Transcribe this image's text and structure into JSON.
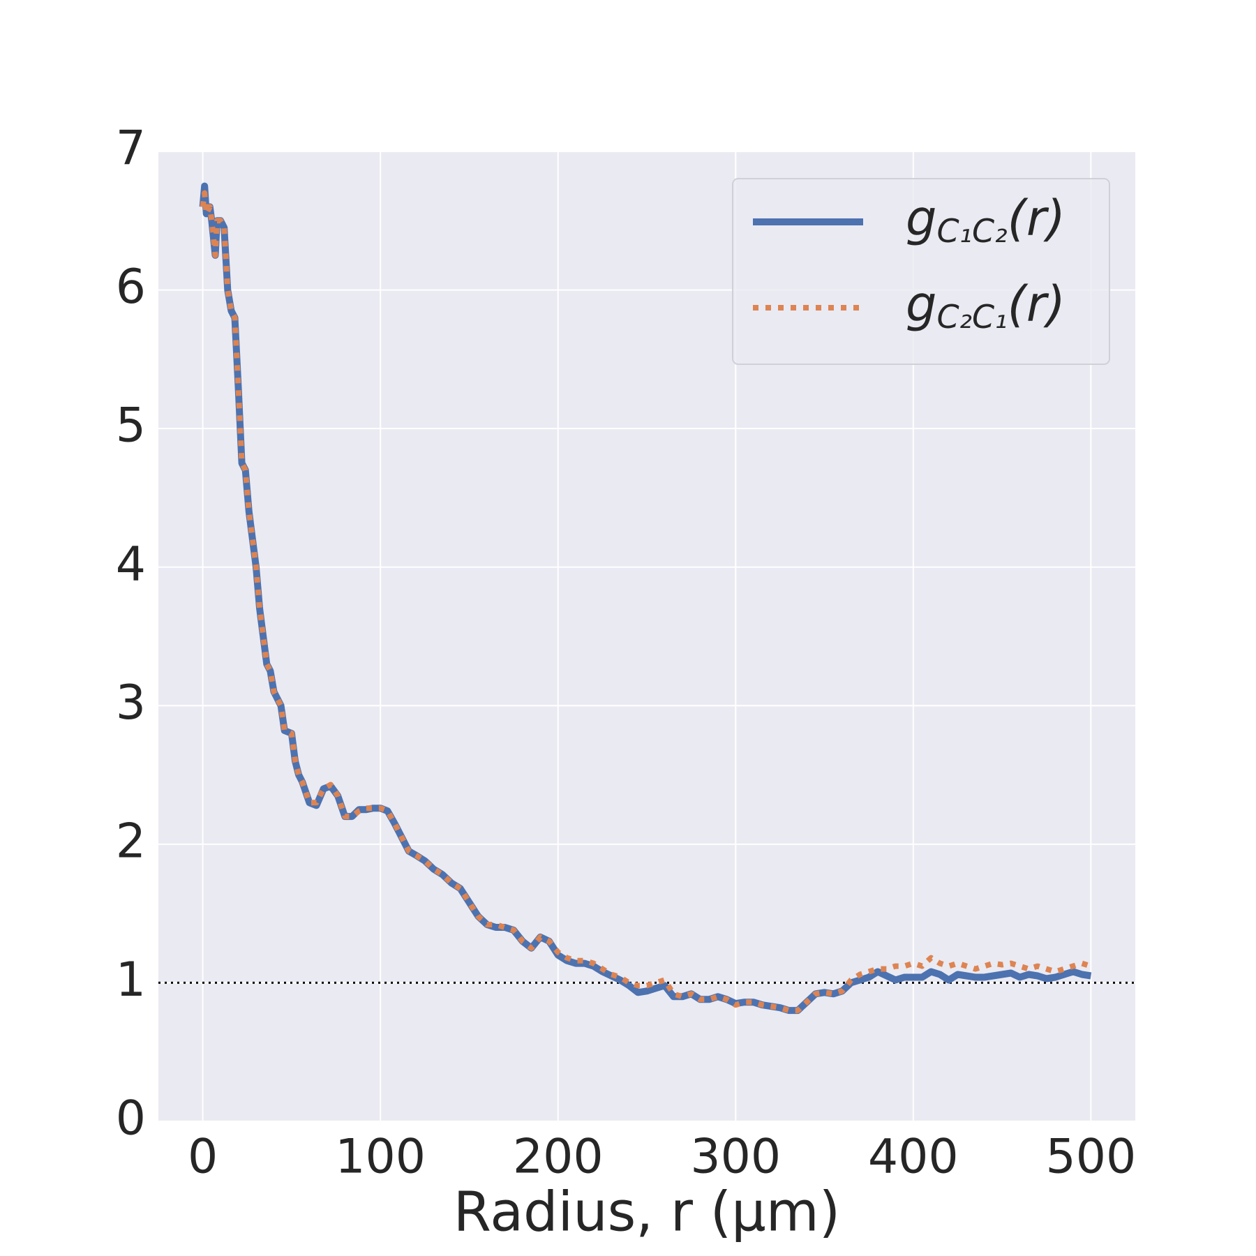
{
  "chart_data": {
    "type": "line",
    "xlabel": "Radius, r (μm)",
    "x": [
      0,
      1,
      2,
      4,
      5,
      7,
      8,
      10,
      12,
      14,
      16,
      18,
      20,
      22,
      24,
      26,
      28,
      30,
      32,
      34,
      36,
      38,
      40,
      44,
      46,
      50,
      52,
      54,
      56,
      60,
      64,
      68,
      72,
      76,
      80,
      84,
      88,
      92,
      96,
      100,
      104,
      108,
      112,
      116,
      120,
      125,
      130,
      135,
      140,
      145,
      150,
      155,
      160,
      165,
      170,
      175,
      180,
      185,
      190,
      195,
      200,
      205,
      210,
      215,
      220,
      225,
      230,
      235,
      240,
      245,
      250,
      255,
      260,
      265,
      270,
      275,
      280,
      285,
      290,
      295,
      300,
      305,
      310,
      315,
      320,
      325,
      330,
      335,
      340,
      345,
      350,
      355,
      360,
      365,
      370,
      375,
      380,
      385,
      390,
      395,
      400,
      405,
      410,
      415,
      420,
      425,
      430,
      435,
      440,
      445,
      450,
      455,
      460,
      465,
      470,
      475,
      480,
      485,
      490,
      495,
      500
    ],
    "series": [
      {
        "name": "gC₁C₂(r)",
        "color": "#4c72b0",
        "style": "solid",
        "values": [
          6.6,
          6.75,
          6.55,
          6.6,
          6.5,
          6.25,
          6.5,
          6.5,
          6.45,
          6.0,
          5.85,
          5.8,
          5.3,
          4.75,
          4.7,
          4.4,
          4.2,
          4.0,
          3.7,
          3.5,
          3.3,
          3.25,
          3.1,
          3.0,
          2.82,
          2.8,
          2.6,
          2.5,
          2.45,
          2.3,
          2.28,
          2.4,
          2.42,
          2.35,
          2.2,
          2.2,
          2.25,
          2.25,
          2.26,
          2.26,
          2.24,
          2.15,
          2.05,
          1.95,
          1.92,
          1.88,
          1.82,
          1.78,
          1.72,
          1.68,
          1.58,
          1.48,
          1.42,
          1.4,
          1.4,
          1.38,
          1.3,
          1.25,
          1.33,
          1.3,
          1.2,
          1.16,
          1.14,
          1.14,
          1.12,
          1.08,
          1.05,
          1.02,
          0.98,
          0.93,
          0.94,
          0.96,
          0.98,
          0.9,
          0.9,
          0.92,
          0.88,
          0.88,
          0.9,
          0.88,
          0.85,
          0.86,
          0.86,
          0.84,
          0.83,
          0.82,
          0.8,
          0.8,
          0.86,
          0.92,
          0.93,
          0.92,
          0.94,
          1.0,
          1.02,
          1.04,
          1.08,
          1.05,
          1.02,
          1.04,
          1.04,
          1.04,
          1.08,
          1.06,
          1.02,
          1.06,
          1.05,
          1.04,
          1.04,
          1.05,
          1.06,
          1.07,
          1.04,
          1.06,
          1.05,
          1.03,
          1.04,
          1.06,
          1.08,
          1.06,
          1.05
        ]
      },
      {
        "name": "gC₂C₁(r)",
        "color": "#dd8452",
        "style": "dotted",
        "values": [
          6.6,
          6.7,
          6.55,
          6.6,
          6.5,
          6.25,
          6.5,
          6.5,
          6.45,
          6.0,
          5.85,
          5.8,
          5.3,
          4.75,
          4.7,
          4.4,
          4.2,
          4.0,
          3.7,
          3.5,
          3.3,
          3.25,
          3.1,
          3.0,
          2.82,
          2.8,
          2.6,
          2.5,
          2.45,
          2.3,
          2.3,
          2.4,
          2.43,
          2.35,
          2.2,
          2.2,
          2.24,
          2.26,
          2.26,
          2.26,
          2.24,
          2.15,
          2.05,
          1.95,
          1.92,
          1.88,
          1.82,
          1.78,
          1.72,
          1.68,
          1.58,
          1.48,
          1.42,
          1.42,
          1.4,
          1.38,
          1.3,
          1.25,
          1.33,
          1.3,
          1.22,
          1.18,
          1.16,
          1.16,
          1.14,
          1.1,
          1.06,
          1.04,
          1.0,
          0.98,
          0.98,
          1.0,
          1.02,
          0.92,
          0.9,
          0.92,
          0.88,
          0.88,
          0.9,
          0.88,
          0.84,
          0.86,
          0.86,
          0.84,
          0.83,
          0.82,
          0.8,
          0.8,
          0.86,
          0.92,
          0.93,
          0.92,
          0.94,
          1.02,
          1.06,
          1.08,
          1.1,
          1.1,
          1.12,
          1.12,
          1.14,
          1.12,
          1.18,
          1.14,
          1.12,
          1.14,
          1.12,
          1.1,
          1.12,
          1.14,
          1.13,
          1.14,
          1.12,
          1.1,
          1.12,
          1.1,
          1.08,
          1.1,
          1.12,
          1.14,
          1.12
        ]
      }
    ],
    "reference_line": {
      "y": 1,
      "color": "#000000",
      "style": "dotted"
    },
    "xlim": [
      -25,
      525
    ],
    "xticks": [
      0,
      100,
      200,
      300,
      400,
      500
    ],
    "ylim": [
      0,
      7
    ],
    "yticks": [
      0,
      1,
      2,
      3,
      4,
      5,
      6,
      7
    ],
    "grid": true,
    "legend": "upper right"
  }
}
